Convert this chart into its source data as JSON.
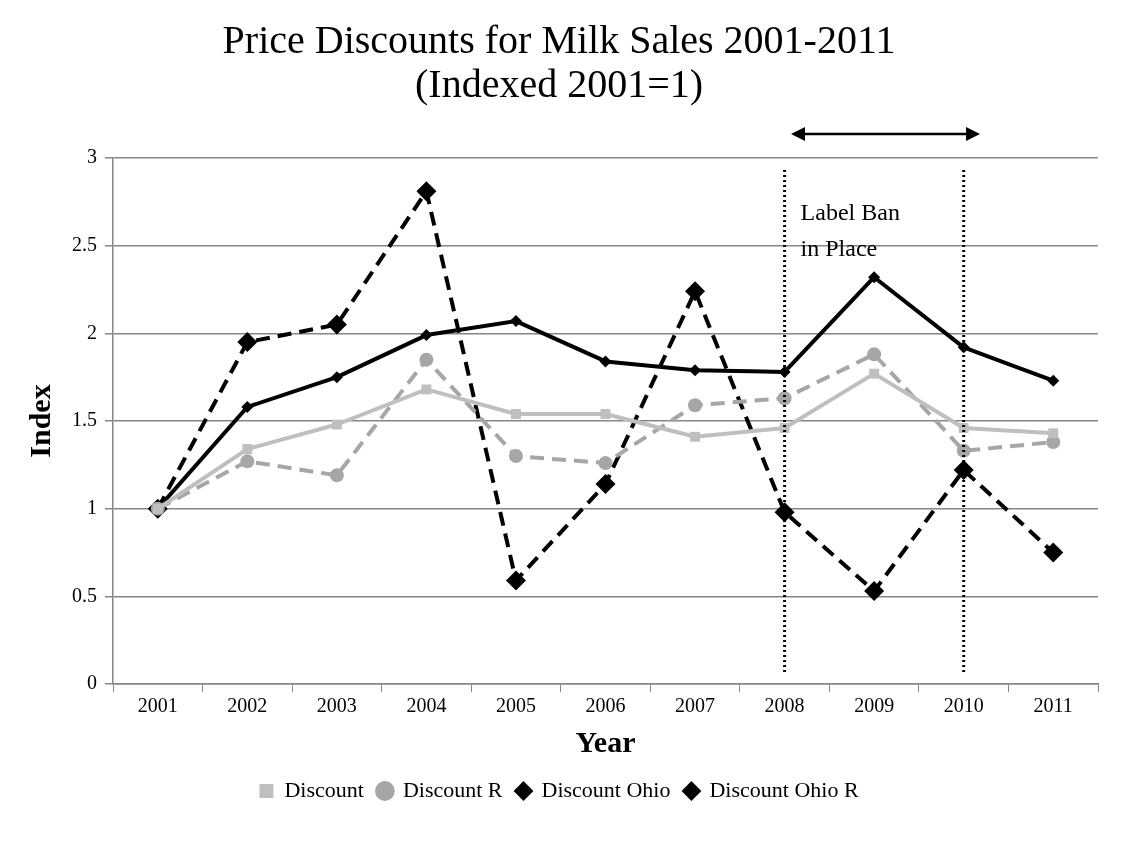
{
  "chart_data": {
    "type": "line",
    "title": "Price Discounts for Milk Sales 2001-2011 (Indexed 2001=1)",
    "xlabel": "Year",
    "ylabel": "Index",
    "categories": [
      "2001",
      "2002",
      "2003",
      "2004",
      "2005",
      "2006",
      "2007",
      "2008",
      "2009",
      "2010",
      "2011"
    ],
    "series": [
      {
        "name": "Discount",
        "color": "#bfbfbf",
        "marker": "square",
        "line_style": "solid",
        "values": [
          1,
          1.34,
          1.48,
          1.68,
          1.54,
          1.54,
          1.41,
          1.46,
          1.77,
          1.46,
          1.43
        ]
      },
      {
        "name": "Discount R",
        "color": "#a6a6a6",
        "marker": "circle",
        "line_style": "dashed",
        "values": [
          1,
          1.27,
          1.19,
          1.85,
          1.3,
          1.26,
          1.59,
          1.63,
          1.88,
          1.33,
          1.38
        ]
      },
      {
        "name": "Discount Ohio",
        "color": "#000000",
        "marker": "diamond",
        "line_style": "solid",
        "values": [
          1,
          1.58,
          1.75,
          1.99,
          2.07,
          1.84,
          1.79,
          1.78,
          2.32,
          1.92,
          1.73
        ]
      },
      {
        "name": "Discount Ohio R",
        "color": "#000000",
        "marker": "diamond",
        "line_style": "dashed",
        "values": [
          1,
          1.95,
          2.05,
          2.81,
          0.59,
          1.14,
          2.24,
          0.98,
          0.53,
          1.22,
          0.75
        ]
      }
    ],
    "ylim": [
      0,
      3
    ],
    "yticks": [
      0,
      0.5,
      1,
      1.5,
      2,
      2.5,
      3
    ],
    "grid": "y",
    "legend": "bottom",
    "ref_lines": [
      {
        "axis": "x",
        "value": "2008",
        "line_style": "dotted",
        "color": "#000000"
      },
      {
        "axis": "x",
        "value": "2010",
        "line_style": "dotted",
        "color": "#000000"
      }
    ],
    "annotations": [
      {
        "text": "Label Ban in Place",
        "x": "2008",
        "y": 2.75
      }
    ]
  }
}
